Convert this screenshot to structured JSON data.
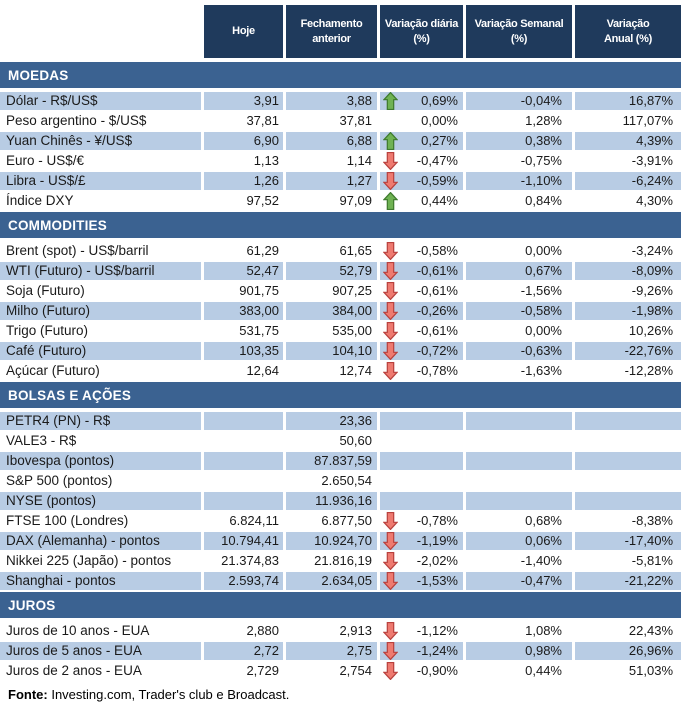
{
  "chart_data": {
    "type": "table",
    "columns": [
      {
        "line1": "Hoje",
        "line2": ""
      },
      {
        "line1": "Fechamento",
        "line2": "anterior"
      },
      {
        "line1": "Variação diária",
        "line2": "(%)"
      },
      {
        "line1": "Variação Semanal",
        "line2": "(%)"
      },
      {
        "line1": "Variação",
        "line2": "Anual (%)"
      }
    ],
    "sections": [
      {
        "title": "MOEDAS",
        "first_row_shaded": true,
        "rows": [
          {
            "label": "Dólar - R$/US$",
            "hoje": "3,91",
            "fechamento": "3,88",
            "arrow": "up",
            "diaria": "0,69%",
            "semanal": "-0,04%",
            "anual": "16,87%"
          },
          {
            "label": "Peso argentino - $/US$",
            "hoje": "37,81",
            "fechamento": "37,81",
            "arrow": "none",
            "diaria": "0,00%",
            "semanal": "1,28%",
            "anual": "117,07%"
          },
          {
            "label": "Yuan Chinês - ¥/US$",
            "hoje": "6,90",
            "fechamento": "6,88",
            "arrow": "up",
            "diaria": "0,27%",
            "semanal": "0,38%",
            "anual": "4,39%"
          },
          {
            "label": "Euro - US$/€",
            "hoje": "1,13",
            "fechamento": "1,14",
            "arrow": "down",
            "diaria": "-0,47%",
            "semanal": "-0,75%",
            "anual": "-3,91%"
          },
          {
            "label": "Libra - US$/£",
            "hoje": "1,26",
            "fechamento": "1,27",
            "arrow": "down",
            "diaria": "-0,59%",
            "semanal": "-1,10%",
            "anual": "-6,24%"
          },
          {
            "label": "Índice DXY",
            "hoje": "97,52",
            "fechamento": "97,09",
            "arrow": "up",
            "diaria": "0,44%",
            "semanal": "0,84%",
            "anual": "4,30%"
          }
        ]
      },
      {
        "title": "COMMODITIES",
        "first_row_shaded": false,
        "rows": [
          {
            "label": "Brent (spot) - US$/barril",
            "hoje": "61,29",
            "fechamento": "61,65",
            "arrow": "down",
            "diaria": "-0,58%",
            "semanal": "0,00%",
            "anual": "-3,24%"
          },
          {
            "label": "WTI (Futuro) - US$/barril",
            "hoje": "52,47",
            "fechamento": "52,79",
            "arrow": "down",
            "diaria": "-0,61%",
            "semanal": "0,67%",
            "anual": "-8,09%"
          },
          {
            "label": "Soja (Futuro)",
            "hoje": "901,75",
            "fechamento": "907,25",
            "arrow": "down",
            "diaria": "-0,61%",
            "semanal": "-1,56%",
            "anual": "-9,26%"
          },
          {
            "label": "Milho (Futuro)",
            "hoje": "383,00",
            "fechamento": "384,00",
            "arrow": "down",
            "diaria": "-0,26%",
            "semanal": "-0,58%",
            "anual": "-1,98%"
          },
          {
            "label": "Trigo (Futuro)",
            "hoje": "531,75",
            "fechamento": "535,00",
            "arrow": "down",
            "diaria": "-0,61%",
            "semanal": "0,00%",
            "anual": "10,26%"
          },
          {
            "label": "Café (Futuro)",
            "hoje": "103,35",
            "fechamento": "104,10",
            "arrow": "down",
            "diaria": "-0,72%",
            "semanal": "-0,63%",
            "anual": "-22,76%"
          },
          {
            "label": "Açúcar (Futuro)",
            "hoje": "12,64",
            "fechamento": "12,74",
            "arrow": "down",
            "diaria": "-0,78%",
            "semanal": "-1,63%",
            "anual": "-12,28%"
          }
        ]
      },
      {
        "title": "BOLSAS E AÇÕES",
        "first_row_shaded": true,
        "rows": [
          {
            "label": "PETR4 (PN) - R$",
            "hoje": "",
            "fechamento": "23,36",
            "arrow": "none",
            "diaria": "",
            "semanal": "",
            "anual": ""
          },
          {
            "label": "VALE3 - R$",
            "hoje": "",
            "fechamento": "50,60",
            "arrow": "none",
            "diaria": "",
            "semanal": "",
            "anual": ""
          },
          {
            "label": "Ibovespa (pontos)",
            "hoje": "",
            "fechamento": "87.837,59",
            "arrow": "none",
            "diaria": "",
            "semanal": "",
            "anual": ""
          },
          {
            "label": "S&P 500 (pontos)",
            "hoje": "",
            "fechamento": "2.650,54",
            "arrow": "none",
            "diaria": "",
            "semanal": "",
            "anual": ""
          },
          {
            "label": "NYSE (pontos)",
            "hoje": "",
            "fechamento": "11.936,16",
            "arrow": "none",
            "diaria": "",
            "semanal": "",
            "anual": ""
          },
          {
            "label": "FTSE 100 (Londres)",
            "hoje": "6.824,11",
            "fechamento": "6.877,50",
            "arrow": "down",
            "diaria": "-0,78%",
            "semanal": "0,68%",
            "anual": "-8,38%"
          },
          {
            "label": "DAX (Alemanha) - pontos",
            "hoje": "10.794,41",
            "fechamento": "10.924,70",
            "arrow": "down",
            "diaria": "-1,19%",
            "semanal": "0,06%",
            "anual": "-17,40%"
          },
          {
            "label": "Nikkei 225 (Japão) - pontos",
            "hoje": "21.374,83",
            "fechamento": "21.816,19",
            "arrow": "down",
            "diaria": "-2,02%",
            "semanal": "-1,40%",
            "anual": "-5,81%"
          },
          {
            "label": "Shanghai - pontos",
            "hoje": "2.593,74",
            "fechamento": "2.634,05",
            "arrow": "down",
            "diaria": "-1,53%",
            "semanal": "-0,47%",
            "anual": "-21,22%"
          }
        ]
      },
      {
        "title": "JUROS",
        "first_row_shaded": false,
        "rows": [
          {
            "label": "Juros de 10 anos - EUA",
            "hoje": "2,880",
            "fechamento": "2,913",
            "arrow": "down",
            "diaria": "-1,12%",
            "semanal": "1,08%",
            "anual": "22,43%"
          },
          {
            "label": "Juros de 5 anos - EUA",
            "hoje": "2,72",
            "fechamento": "2,75",
            "arrow": "down",
            "diaria": "-1,24%",
            "semanal": "0,98%",
            "anual": "26,96%"
          },
          {
            "label": "Juros de 2 anos - EUA",
            "hoje": "2,729",
            "fechamento": "2,754",
            "arrow": "down",
            "diaria": "-0,90%",
            "semanal": "0,44%",
            "anual": "51,03%"
          }
        ]
      }
    ]
  },
  "footer": {
    "label": "Fonte:",
    "text": "Investing.com, Trader's club e Broadcast."
  },
  "colors": {
    "header_bg": "#1f3a5c",
    "section_bg": "#3b6291",
    "shaded_row": "#b8cce4",
    "arrow_up": "#6fb253",
    "arrow_up_border": "#3e7a2e",
    "arrow_down": "#ee7a70",
    "arrow_down_border": "#b8413e"
  }
}
